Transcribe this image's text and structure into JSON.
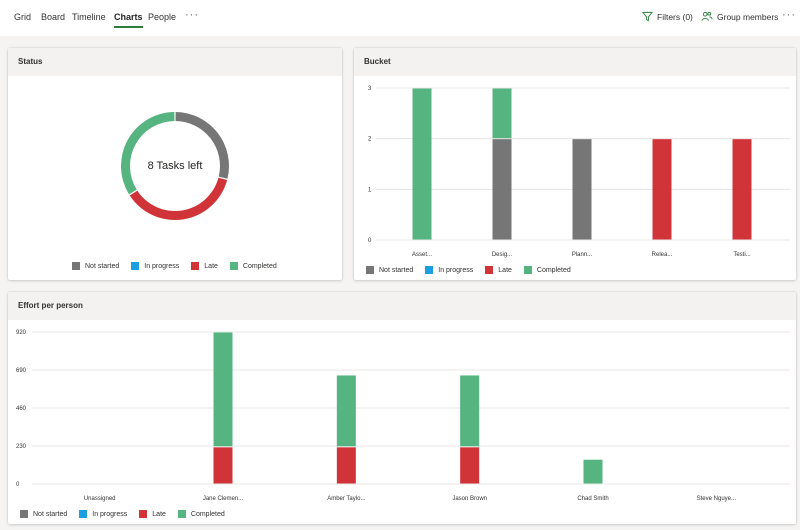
{
  "nav": {
    "tabs": [
      {
        "label": "Grid",
        "active": false
      },
      {
        "label": "Board",
        "active": false
      },
      {
        "label": "Timeline",
        "active": false
      },
      {
        "label": "Charts",
        "active": true
      },
      {
        "label": "People",
        "active": false
      }
    ],
    "more": "···",
    "filters": "Filters (0)",
    "group_members": "Group members",
    "right_more": "···"
  },
  "colors": {
    "not_started": "#767676",
    "in_progress": "#1a9ee0",
    "late": "#d13438",
    "completed": "#55b47f",
    "grid": "#e1dfdd",
    "icon": "#2f7d3b"
  },
  "legend": [
    "Not started",
    "In progress",
    "Late",
    "Completed"
  ],
  "status": {
    "title": "Status",
    "center_label": "8 Tasks left"
  },
  "bucket": {
    "title": "Bucket"
  },
  "effort": {
    "title": "Effort per person"
  },
  "chart_data": [
    {
      "type": "pie",
      "title": "Status",
      "categories": [
        "Not started",
        "In progress",
        "Late",
        "Completed"
      ],
      "values": [
        0.29,
        0.0,
        0.37,
        0.34
      ]
    },
    {
      "type": "bar",
      "title": "Bucket",
      "categories": [
        "Asset...",
        "Desig...",
        "Plann...",
        "Relea...",
        "Testi..."
      ],
      "ylim": [
        0,
        3
      ],
      "yticks": [
        0,
        1,
        2,
        3
      ],
      "series": [
        {
          "name": "Not started",
          "values": [
            0,
            2,
            2,
            0,
            0
          ]
        },
        {
          "name": "In progress",
          "values": [
            0,
            0,
            0,
            0,
            0
          ]
        },
        {
          "name": "Late",
          "values": [
            0,
            0,
            0,
            2,
            2
          ]
        },
        {
          "name": "Completed",
          "values": [
            3,
            1,
            0,
            0,
            0
          ]
        }
      ]
    },
    {
      "type": "bar",
      "title": "Effort per person",
      "categories": [
        "Unassigned",
        "Jane Clemen...",
        "Amber Taylo...",
        "Jason Brown",
        "Chad Smith",
        "Steve Nguye..."
      ],
      "ylim": [
        0,
        920
      ],
      "yticks": [
        0,
        230,
        460,
        690,
        920
      ],
      "series": [
        {
          "name": "Not started",
          "values": [
            0,
            0,
            0,
            0,
            0,
            0
          ]
        },
        {
          "name": "In progress",
          "values": [
            0,
            0,
            0,
            0,
            0,
            0
          ]
        },
        {
          "name": "Late",
          "values": [
            0,
            225,
            225,
            225,
            0,
            0
          ]
        },
        {
          "name": "Completed",
          "values": [
            0,
            695,
            435,
            435,
            150,
            0
          ]
        }
      ]
    }
  ]
}
